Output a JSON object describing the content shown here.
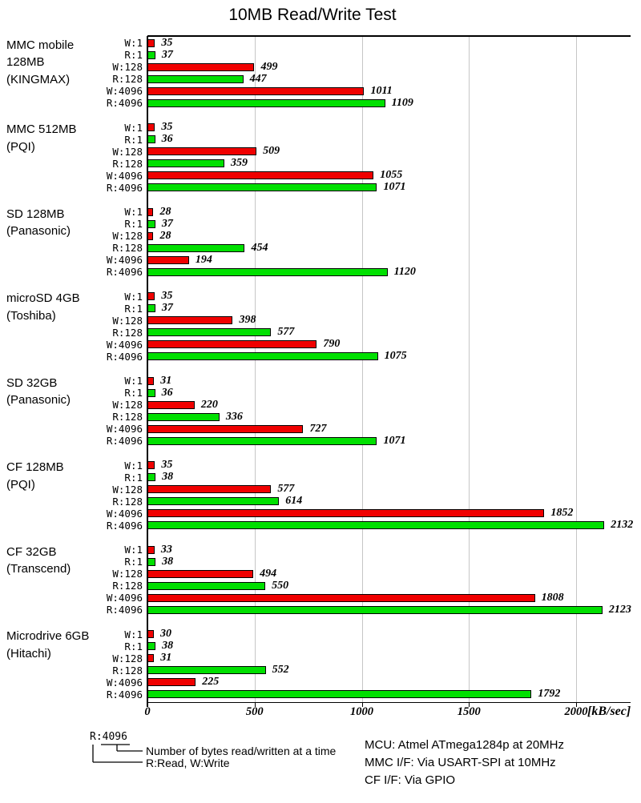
{
  "title": "10MB Read/Write Test",
  "axis": {
    "ticks": [
      0,
      500,
      1000,
      1500,
      2000
    ],
    "unit_label": "[kB/sec]",
    "xmax": 2254
  },
  "colors": {
    "write_bar": "#f00000",
    "read_bar": "#00e000",
    "gridline": "#c6c6c6",
    "axis": "#000000"
  },
  "chart_data": {
    "type": "bar",
    "orientation": "horizontal",
    "title": "10MB Read/Write Test",
    "xlabel": "[kB/sec]",
    "xlim": [
      0,
      2254
    ],
    "grid": true,
    "bar_labels": [
      "W:1",
      "R:1",
      "W:128",
      "R:128",
      "W:4096",
      "R:4096"
    ],
    "series_colors": {
      "W": "write_bar",
      "R": "read_bar"
    },
    "groups": [
      {
        "label_lines": [
          "MMC mobile",
          "128MB",
          "(KINGMAX)"
        ],
        "values": [
          35,
          37,
          499,
          447,
          1011,
          1109
        ]
      },
      {
        "label_lines": [
          "MMC 512MB",
          "(PQI)"
        ],
        "values": [
          35,
          36,
          509,
          359,
          1055,
          1071
        ]
      },
      {
        "label_lines": [
          "SD 128MB",
          "(Panasonic)"
        ],
        "values": [
          28,
          37,
          28,
          454,
          194,
          1120
        ]
      },
      {
        "label_lines": [
          "microSD 4GB",
          "(Toshiba)"
        ],
        "values": [
          35,
          37,
          398,
          577,
          790,
          1075
        ]
      },
      {
        "label_lines": [
          "SD 32GB",
          "(Panasonic)"
        ],
        "values": [
          31,
          36,
          220,
          336,
          727,
          1071
        ]
      },
      {
        "label_lines": [
          "CF 128MB",
          "(PQI)"
        ],
        "values": [
          35,
          38,
          577,
          614,
          1852,
          2132
        ]
      },
      {
        "label_lines": [
          "CF 32GB",
          "(Transcend)"
        ],
        "values": [
          33,
          38,
          494,
          550,
          1808,
          2123
        ]
      },
      {
        "label_lines": [
          "Microdrive 6GB",
          "(Hitachi)"
        ],
        "values": [
          30,
          38,
          31,
          552,
          225,
          1792
        ]
      }
    ]
  },
  "legend": {
    "example_key": "R:4096",
    "note_bytes": "Number of bytes read/written at a time",
    "note_rw": "R:Read, W:Write"
  },
  "footer": {
    "lines": [
      "MCU: Atmel ATmega1284p at 20MHz",
      "MMC I/F: Via USART-SPI at 10MHz",
      "CF I/F: Via GPIO"
    ]
  }
}
